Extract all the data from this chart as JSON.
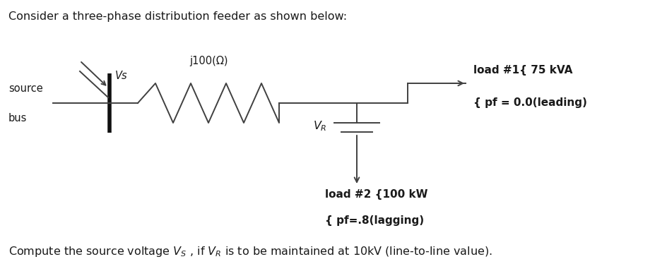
{
  "title_text": "Consider a three-phase distribution feeder as shown below:",
  "footer_text": "Compute the source voltage $V_S$ , if $V_R$ is to be maintained at 10kV (line-to-line value).",
  "vs_label": "Vs",
  "impedance_label": "j100(Ω)",
  "vr_label": "$V_R$",
  "load1_line1": "load #1{ 75 kVA",
  "load1_line2": "{ pf = 0.0(leading)",
  "load2_line1": "load #2 {100 kW",
  "load2_line2": "{ pf=.8(lagging)",
  "bg_color": "#ffffff",
  "text_color": "#1a1a1a",
  "line_color": "#404040",
  "title_fontsize": 11.5,
  "label_fontsize": 10.5,
  "bold_fontsize": 11,
  "footer_fontsize": 11.5
}
